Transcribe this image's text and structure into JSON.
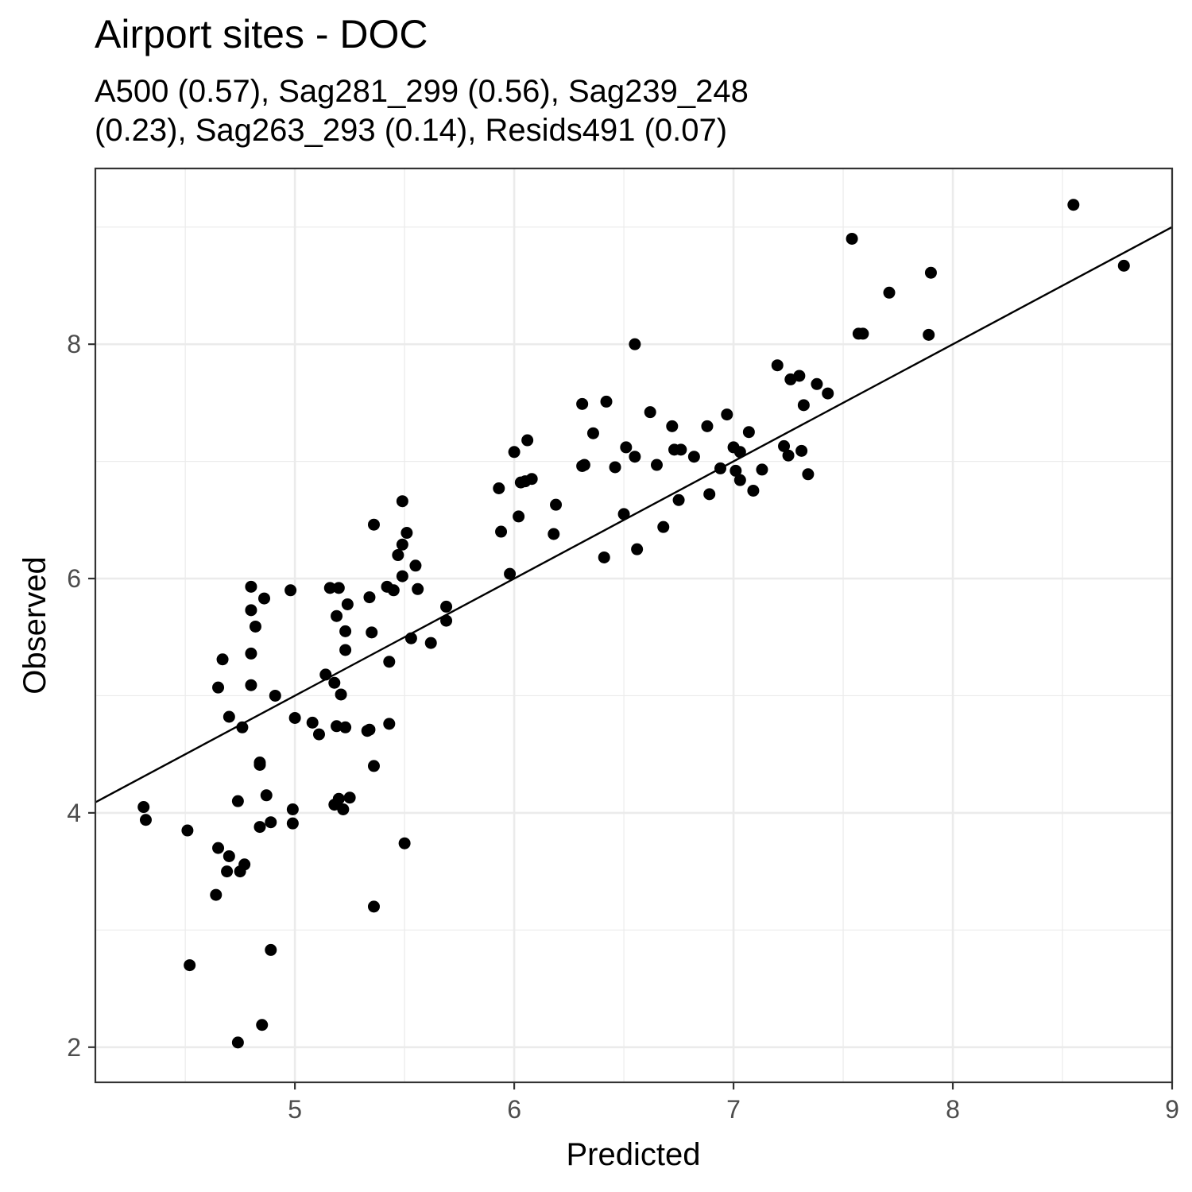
{
  "chart_data": {
    "type": "scatter",
    "title": "Airport sites - DOC",
    "subtitle_lines": [
      "A500 (0.57), Sag281_299 (0.56), Sag239_248",
      "(0.23), Sag263_293 (0.14), Resids491 (0.07)"
    ],
    "xlabel": "Predicted",
    "ylabel": "Observed",
    "xlim": [
      4.09,
      9.0
    ],
    "ylim": [
      1.7,
      9.5
    ],
    "x_ticks": [
      5,
      6,
      7,
      8,
      9
    ],
    "y_ticks": [
      2,
      4,
      6,
      8
    ],
    "x_tick_labels": [
      "5",
      "6",
      "7",
      "8",
      "9"
    ],
    "y_tick_labels": [
      "2",
      "4",
      "6",
      "8"
    ],
    "grid": true,
    "reference_line": {
      "type": "identity",
      "x": [
        4.09,
        9.0
      ],
      "y": [
        4.09,
        9.0
      ]
    },
    "points": [
      [
        4.31,
        4.05
      ],
      [
        4.32,
        3.94
      ],
      [
        4.51,
        3.85
      ],
      [
        4.52,
        2.7
      ],
      [
        4.64,
        3.3
      ],
      [
        4.65,
        3.7
      ],
      [
        4.65,
        5.07
      ],
      [
        4.67,
        5.31
      ],
      [
        4.69,
        3.5
      ],
      [
        4.7,
        3.63
      ],
      [
        4.7,
        4.82
      ],
      [
        4.74,
        4.1
      ],
      [
        4.74,
        2.04
      ],
      [
        4.75,
        3.5
      ],
      [
        4.76,
        4.73
      ],
      [
        4.77,
        3.56
      ],
      [
        4.8,
        5.93
      ],
      [
        4.8,
        5.73
      ],
      [
        4.8,
        5.36
      ],
      [
        4.8,
        5.09
      ],
      [
        4.82,
        5.59
      ],
      [
        4.84,
        4.43
      ],
      [
        4.84,
        4.41
      ],
      [
        4.84,
        3.88
      ],
      [
        4.85,
        2.19
      ],
      [
        4.86,
        5.83
      ],
      [
        4.87,
        4.15
      ],
      [
        4.89,
        3.92
      ],
      [
        4.89,
        2.83
      ],
      [
        4.91,
        5.0
      ],
      [
        4.98,
        5.9
      ],
      [
        4.99,
        4.03
      ],
      [
        4.99,
        3.91
      ],
      [
        5.0,
        4.81
      ],
      [
        5.08,
        4.77
      ],
      [
        5.11,
        4.67
      ],
      [
        5.14,
        5.18
      ],
      [
        5.16,
        5.92
      ],
      [
        5.18,
        5.11
      ],
      [
        5.18,
        4.07
      ],
      [
        5.19,
        4.74
      ],
      [
        5.2,
        4.12
      ],
      [
        5.19,
        5.68
      ],
      [
        5.2,
        5.92
      ],
      [
        5.21,
        5.01
      ],
      [
        5.22,
        4.03
      ],
      [
        5.23,
        5.55
      ],
      [
        5.23,
        5.39
      ],
      [
        5.23,
        4.73
      ],
      [
        5.24,
        5.78
      ],
      [
        5.25,
        4.13
      ],
      [
        5.33,
        4.7
      ],
      [
        5.34,
        4.71
      ],
      [
        5.34,
        5.84
      ],
      [
        5.35,
        5.54
      ],
      [
        5.36,
        6.46
      ],
      [
        5.36,
        4.4
      ],
      [
        5.36,
        3.2
      ],
      [
        5.42,
        5.93
      ],
      [
        5.43,
        5.29
      ],
      [
        5.43,
        4.76
      ],
      [
        5.45,
        5.9
      ],
      [
        5.47,
        6.2
      ],
      [
        5.49,
        6.29
      ],
      [
        5.49,
        6.66
      ],
      [
        5.49,
        6.02
      ],
      [
        5.5,
        3.74
      ],
      [
        5.51,
        6.39
      ],
      [
        5.53,
        5.49
      ],
      [
        5.55,
        6.11
      ],
      [
        5.56,
        5.91
      ],
      [
        5.62,
        5.45
      ],
      [
        5.69,
        5.64
      ],
      [
        5.69,
        5.76
      ],
      [
        5.93,
        6.77
      ],
      [
        5.94,
        6.4
      ],
      [
        5.98,
        6.04
      ],
      [
        6.0,
        7.08
      ],
      [
        6.02,
        6.53
      ],
      [
        6.03,
        6.82
      ],
      [
        6.05,
        6.83
      ],
      [
        6.06,
        7.18
      ],
      [
        6.08,
        6.85
      ],
      [
        6.18,
        6.38
      ],
      [
        6.19,
        6.63
      ],
      [
        6.31,
        7.49
      ],
      [
        6.31,
        6.96
      ],
      [
        6.32,
        6.97
      ],
      [
        6.36,
        7.24
      ],
      [
        6.41,
        6.18
      ],
      [
        6.42,
        7.51
      ],
      [
        6.46,
        6.95
      ],
      [
        6.5,
        6.55
      ],
      [
        6.51,
        7.12
      ],
      [
        6.55,
        7.04
      ],
      [
        6.55,
        8.0
      ],
      [
        6.56,
        6.25
      ],
      [
        6.62,
        7.42
      ],
      [
        6.65,
        6.97
      ],
      [
        6.68,
        6.44
      ],
      [
        6.72,
        7.3
      ],
      [
        6.73,
        7.1
      ],
      [
        6.75,
        6.67
      ],
      [
        6.76,
        7.1
      ],
      [
        6.82,
        7.04
      ],
      [
        6.88,
        7.3
      ],
      [
        6.89,
        6.72
      ],
      [
        6.94,
        6.94
      ],
      [
        6.97,
        7.4
      ],
      [
        7.0,
        7.12
      ],
      [
        7.01,
        6.92
      ],
      [
        7.03,
        7.08
      ],
      [
        7.03,
        6.84
      ],
      [
        7.07,
        7.25
      ],
      [
        7.09,
        6.75
      ],
      [
        7.13,
        6.93
      ],
      [
        7.2,
        7.82
      ],
      [
        7.23,
        7.13
      ],
      [
        7.25,
        7.05
      ],
      [
        7.26,
        7.7
      ],
      [
        7.3,
        7.73
      ],
      [
        7.31,
        7.09
      ],
      [
        7.32,
        7.48
      ],
      [
        7.34,
        6.89
      ],
      [
        7.38,
        7.66
      ],
      [
        7.43,
        7.58
      ],
      [
        7.54,
        8.9
      ],
      [
        7.57,
        8.09
      ],
      [
        7.59,
        8.09
      ],
      [
        7.71,
        8.44
      ],
      [
        7.89,
        8.08
      ],
      [
        7.9,
        8.61
      ],
      [
        8.55,
        9.19
      ],
      [
        8.78,
        8.67
      ]
    ]
  }
}
